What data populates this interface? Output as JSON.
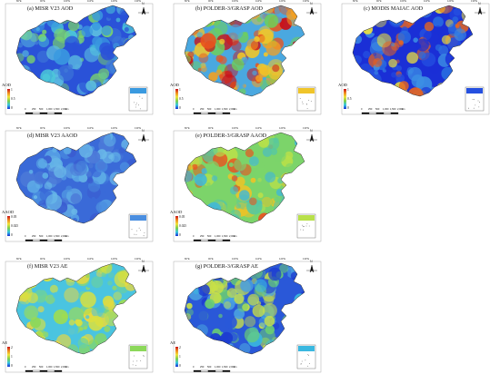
{
  "panels": [
    {
      "id": "a",
      "title": "(a) MISR V23 AOD",
      "legend_label": "AOD",
      "cb_max": "1",
      "cb_mid": "0.5",
      "cb_min": "0",
      "scheme": "misr"
    },
    {
      "id": "b",
      "title": "(b) POLDER-3/GRASP AOD",
      "legend_label": "AOD",
      "cb_max": "1",
      "cb_mid": "0.5",
      "cb_min": "0",
      "scheme": "polder"
    },
    {
      "id": "c",
      "title": "(c) MODIS MAIAC AOD",
      "legend_label": "AOD",
      "cb_max": "1",
      "cb_mid": "0.5",
      "cb_min": "0",
      "scheme": "modis"
    },
    {
      "id": "d",
      "title": "(d) MISR V23 AAOD",
      "legend_label": "AAOD",
      "cb_max": "0.05",
      "cb_mid": "0.025",
      "cb_min": "0",
      "scheme": "misr_aaod"
    },
    {
      "id": "e",
      "title": "(e) POLDER-3/GRASP AAOD",
      "legend_label": "AAOD",
      "cb_max": "0.05",
      "cb_mid": "0.025",
      "cb_min": "0",
      "scheme": "polder_aaod"
    },
    {
      "id": "f",
      "title": "(f) MISR V23 AE",
      "legend_label": "AE",
      "cb_max": "2",
      "cb_mid": "1",
      "cb_min": "0",
      "scheme": "misr_ae"
    },
    {
      "id": "g",
      "title": "(g) POLDER-3/GRASP AE",
      "legend_label": "AE",
      "cb_max": "2",
      "cb_mid": "1",
      "cb_min": "0",
      "scheme": "polder_ae"
    }
  ],
  "scale_bar": {
    "labels": [
      "0",
      "250",
      "500",
      "1,000",
      "1,500",
      "2,000"
    ],
    "unit": "km"
  },
  "lon_ticks": [
    "80°E",
    "90°E",
    "100°E",
    "110°E",
    "120°E",
    "130°E"
  ],
  "compass": "N",
  "colors": {
    "low": "#1a2fd6",
    "mid": "#38c7e0",
    "green": "#7ccf4a",
    "yellow": "#f0e23a",
    "orange": "#f08a1f",
    "high": "#c8101a"
  }
}
